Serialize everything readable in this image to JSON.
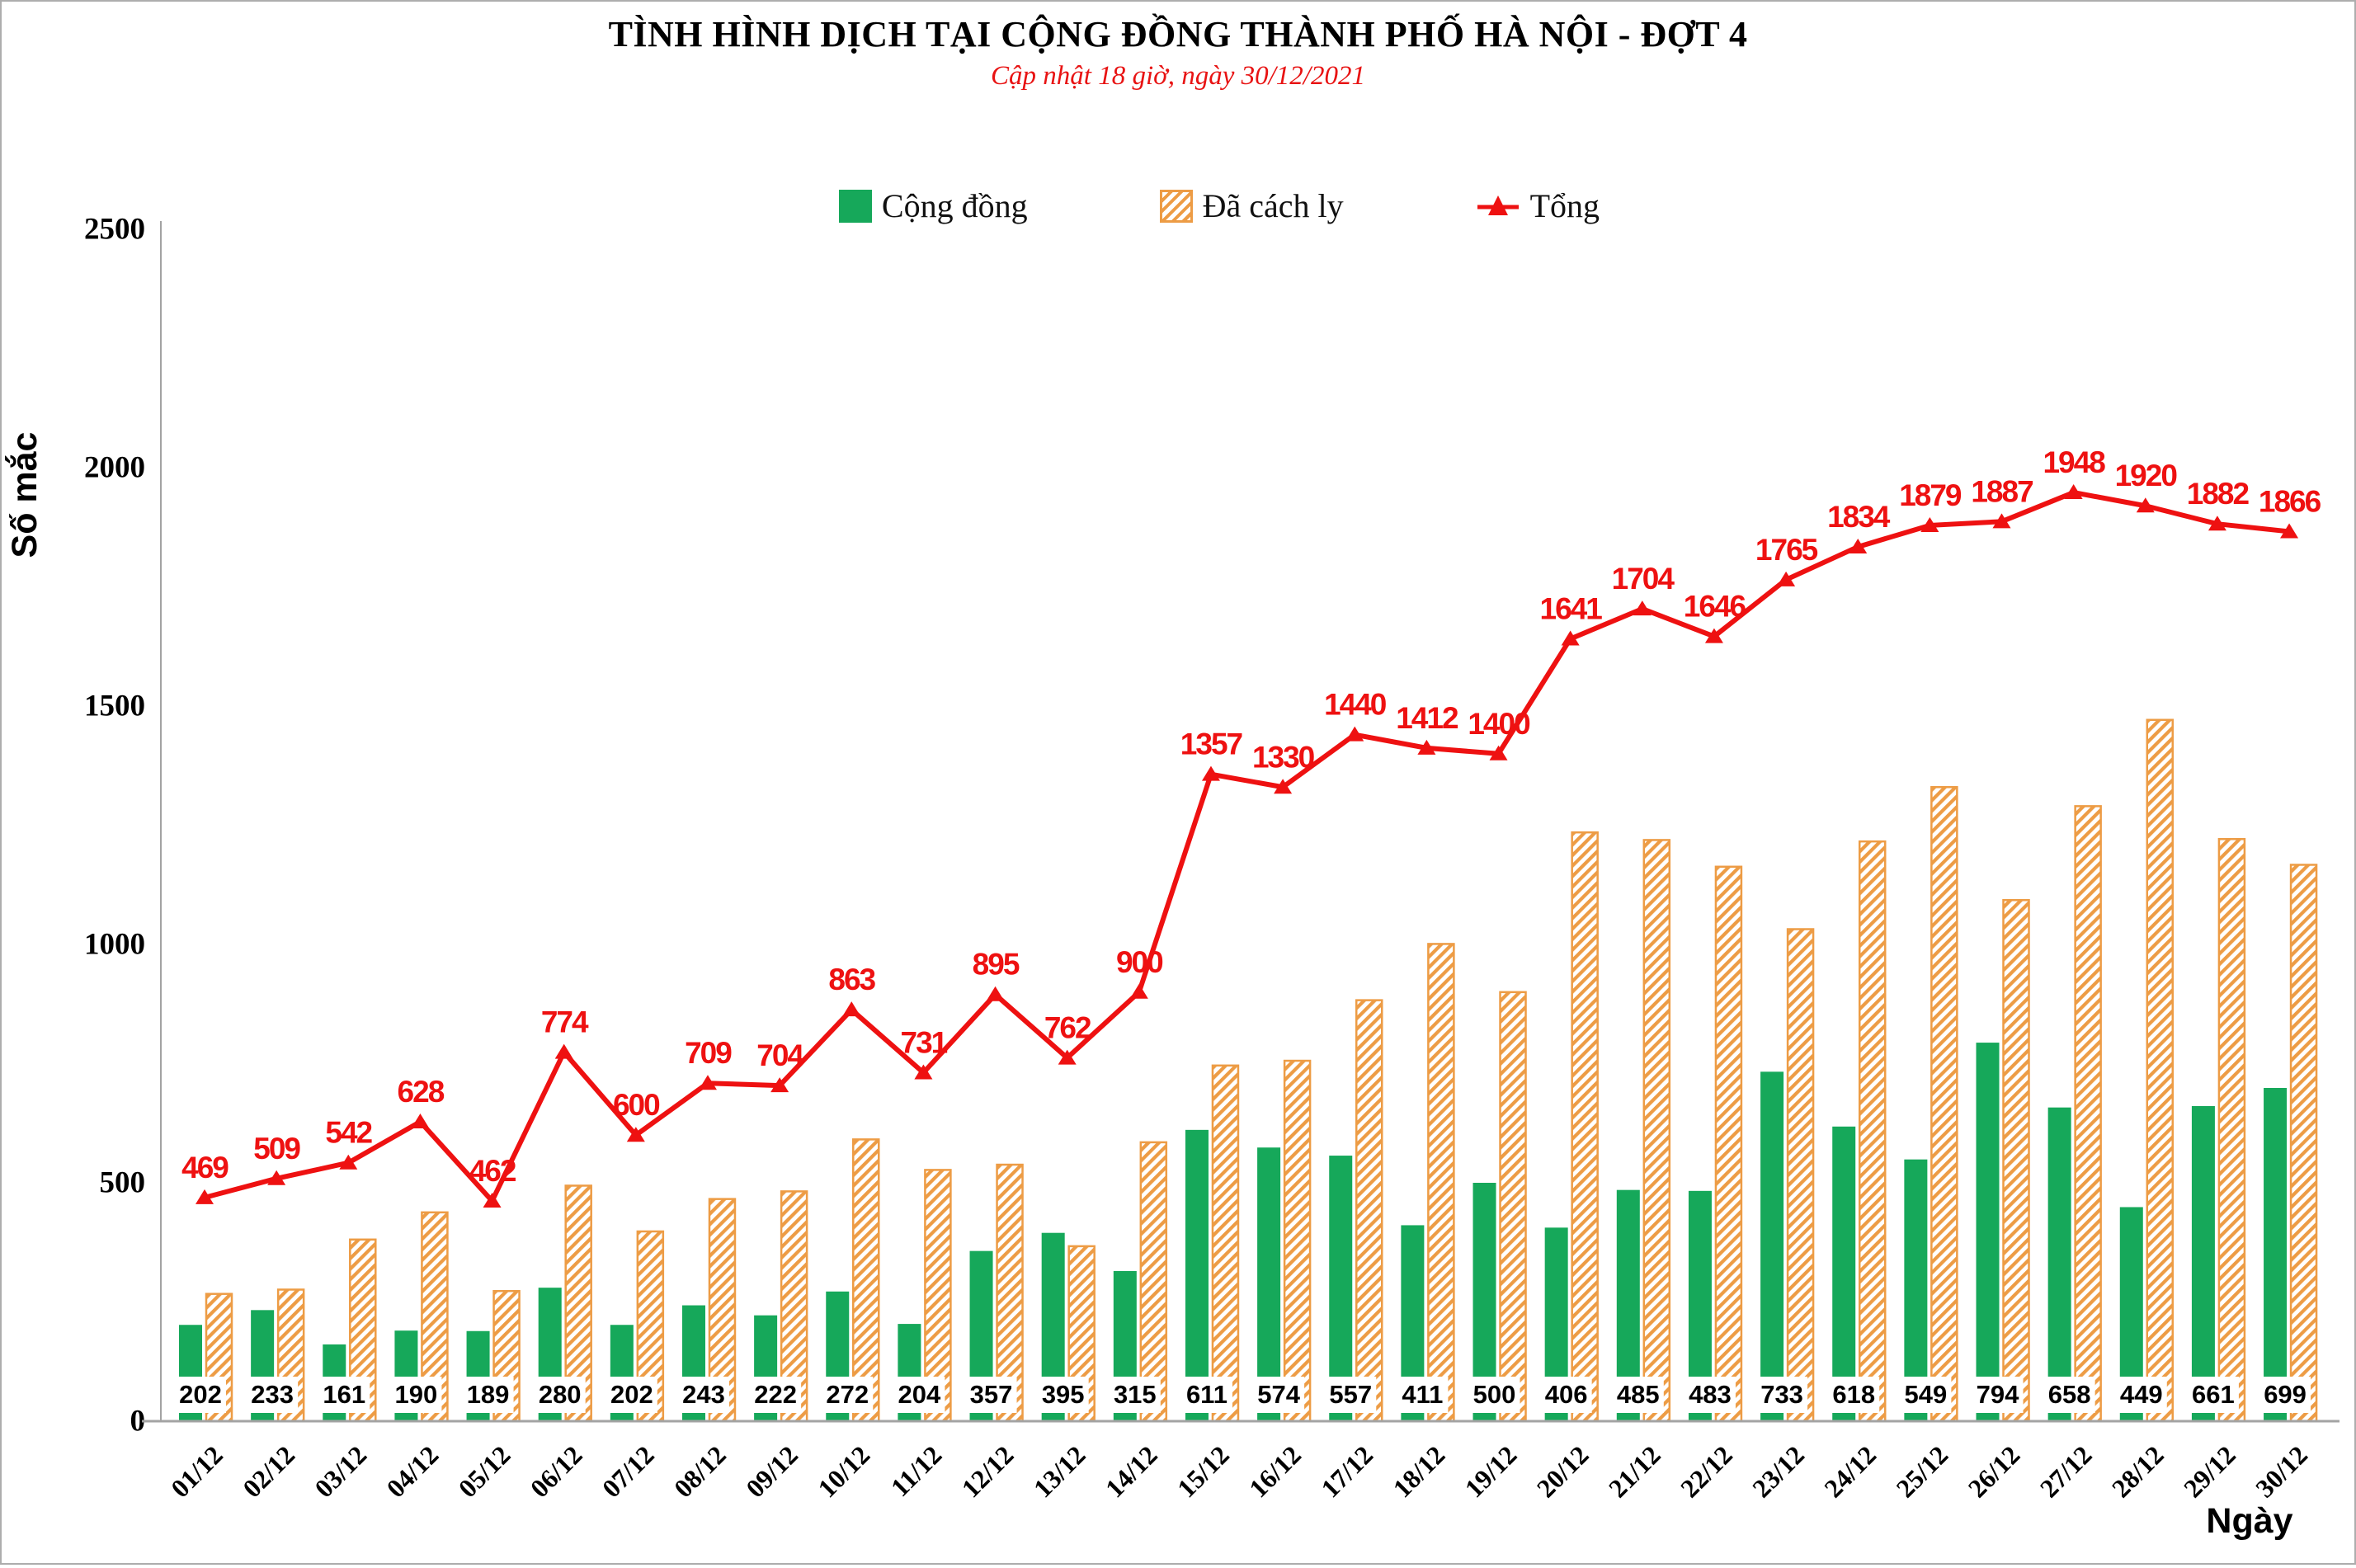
{
  "header": {
    "title": "TÌNH HÌNH DỊCH TẠI CỘNG ĐỒNG THÀNH PHỐ HÀ NỘI - ĐỢT 4",
    "subtitle": "Cập nhật 18 giờ, ngày 30/12/2021"
  },
  "colors": {
    "community_green": "#16A85A",
    "quarantined_orange": "#ED9C45",
    "total_red": "#EE1111",
    "axis_gray": "#A3A3A3"
  },
  "chart_data": {
    "type": "bar",
    "title": "TÌNH HÌNH DỊCH TẠI CỘNG ĐỒNG THÀNH PHỐ HÀ NỘI - ĐỢT 4",
    "subtitle": "Cập nhật 18 giờ, ngày 30/12/2021",
    "xlabel": "Ngày",
    "ylabel": "Số mắc",
    "ylim": [
      0,
      2500
    ],
    "yticks": [
      0,
      500,
      1000,
      1500,
      2000,
      2500
    ],
    "grid": false,
    "legend_position": "top",
    "categories": [
      "01/12",
      "02/12",
      "03/12",
      "04/12",
      "05/12",
      "06/12",
      "07/12",
      "08/12",
      "09/12",
      "10/12",
      "11/12",
      "12/12",
      "13/12",
      "14/12",
      "15/12",
      "16/12",
      "17/12",
      "18/12",
      "19/12",
      "20/12",
      "21/12",
      "22/12",
      "23/12",
      "24/12",
      "25/12",
      "26/12",
      "27/12",
      "28/12",
      "29/12",
      "30/12"
    ],
    "series": [
      {
        "name": "Cộng đồng",
        "type": "bar",
        "style": "solid",
        "color": "#16A85A",
        "values": [
          202,
          233,
          161,
          190,
          189,
          280,
          202,
          243,
          222,
          272,
          204,
          357,
          395,
          315,
          611,
          574,
          557,
          411,
          500,
          406,
          485,
          483,
          733,
          618,
          549,
          794,
          658,
          449,
          661,
          699
        ]
      },
      {
        "name": "Đã cách ly",
        "type": "bar",
        "style": "hatched",
        "color": "#ED9C45",
        "values": [
          267,
          276,
          381,
          438,
          273,
          494,
          398,
          466,
          482,
          591,
          527,
          538,
          367,
          585,
          746,
          756,
          883,
          1001,
          900,
          1235,
          1219,
          1163,
          1032,
          1216,
          1330,
          1093,
          1290,
          1471,
          1221,
          1167
        ]
      },
      {
        "name": "Tổng",
        "type": "line",
        "marker": "triangle",
        "color": "#EE1111",
        "values": [
          469,
          509,
          542,
          628,
          462,
          774,
          600,
          709,
          704,
          863,
          731,
          895,
          762,
          900,
          1357,
          1330,
          1440,
          1412,
          1400,
          1641,
          1704,
          1646,
          1765,
          1834,
          1879,
          1887,
          1948,
          1920,
          1882,
          1866
        ]
      }
    ],
    "bar_labels_from": "Cộng đồng",
    "line_labels_from": "Tổng"
  }
}
